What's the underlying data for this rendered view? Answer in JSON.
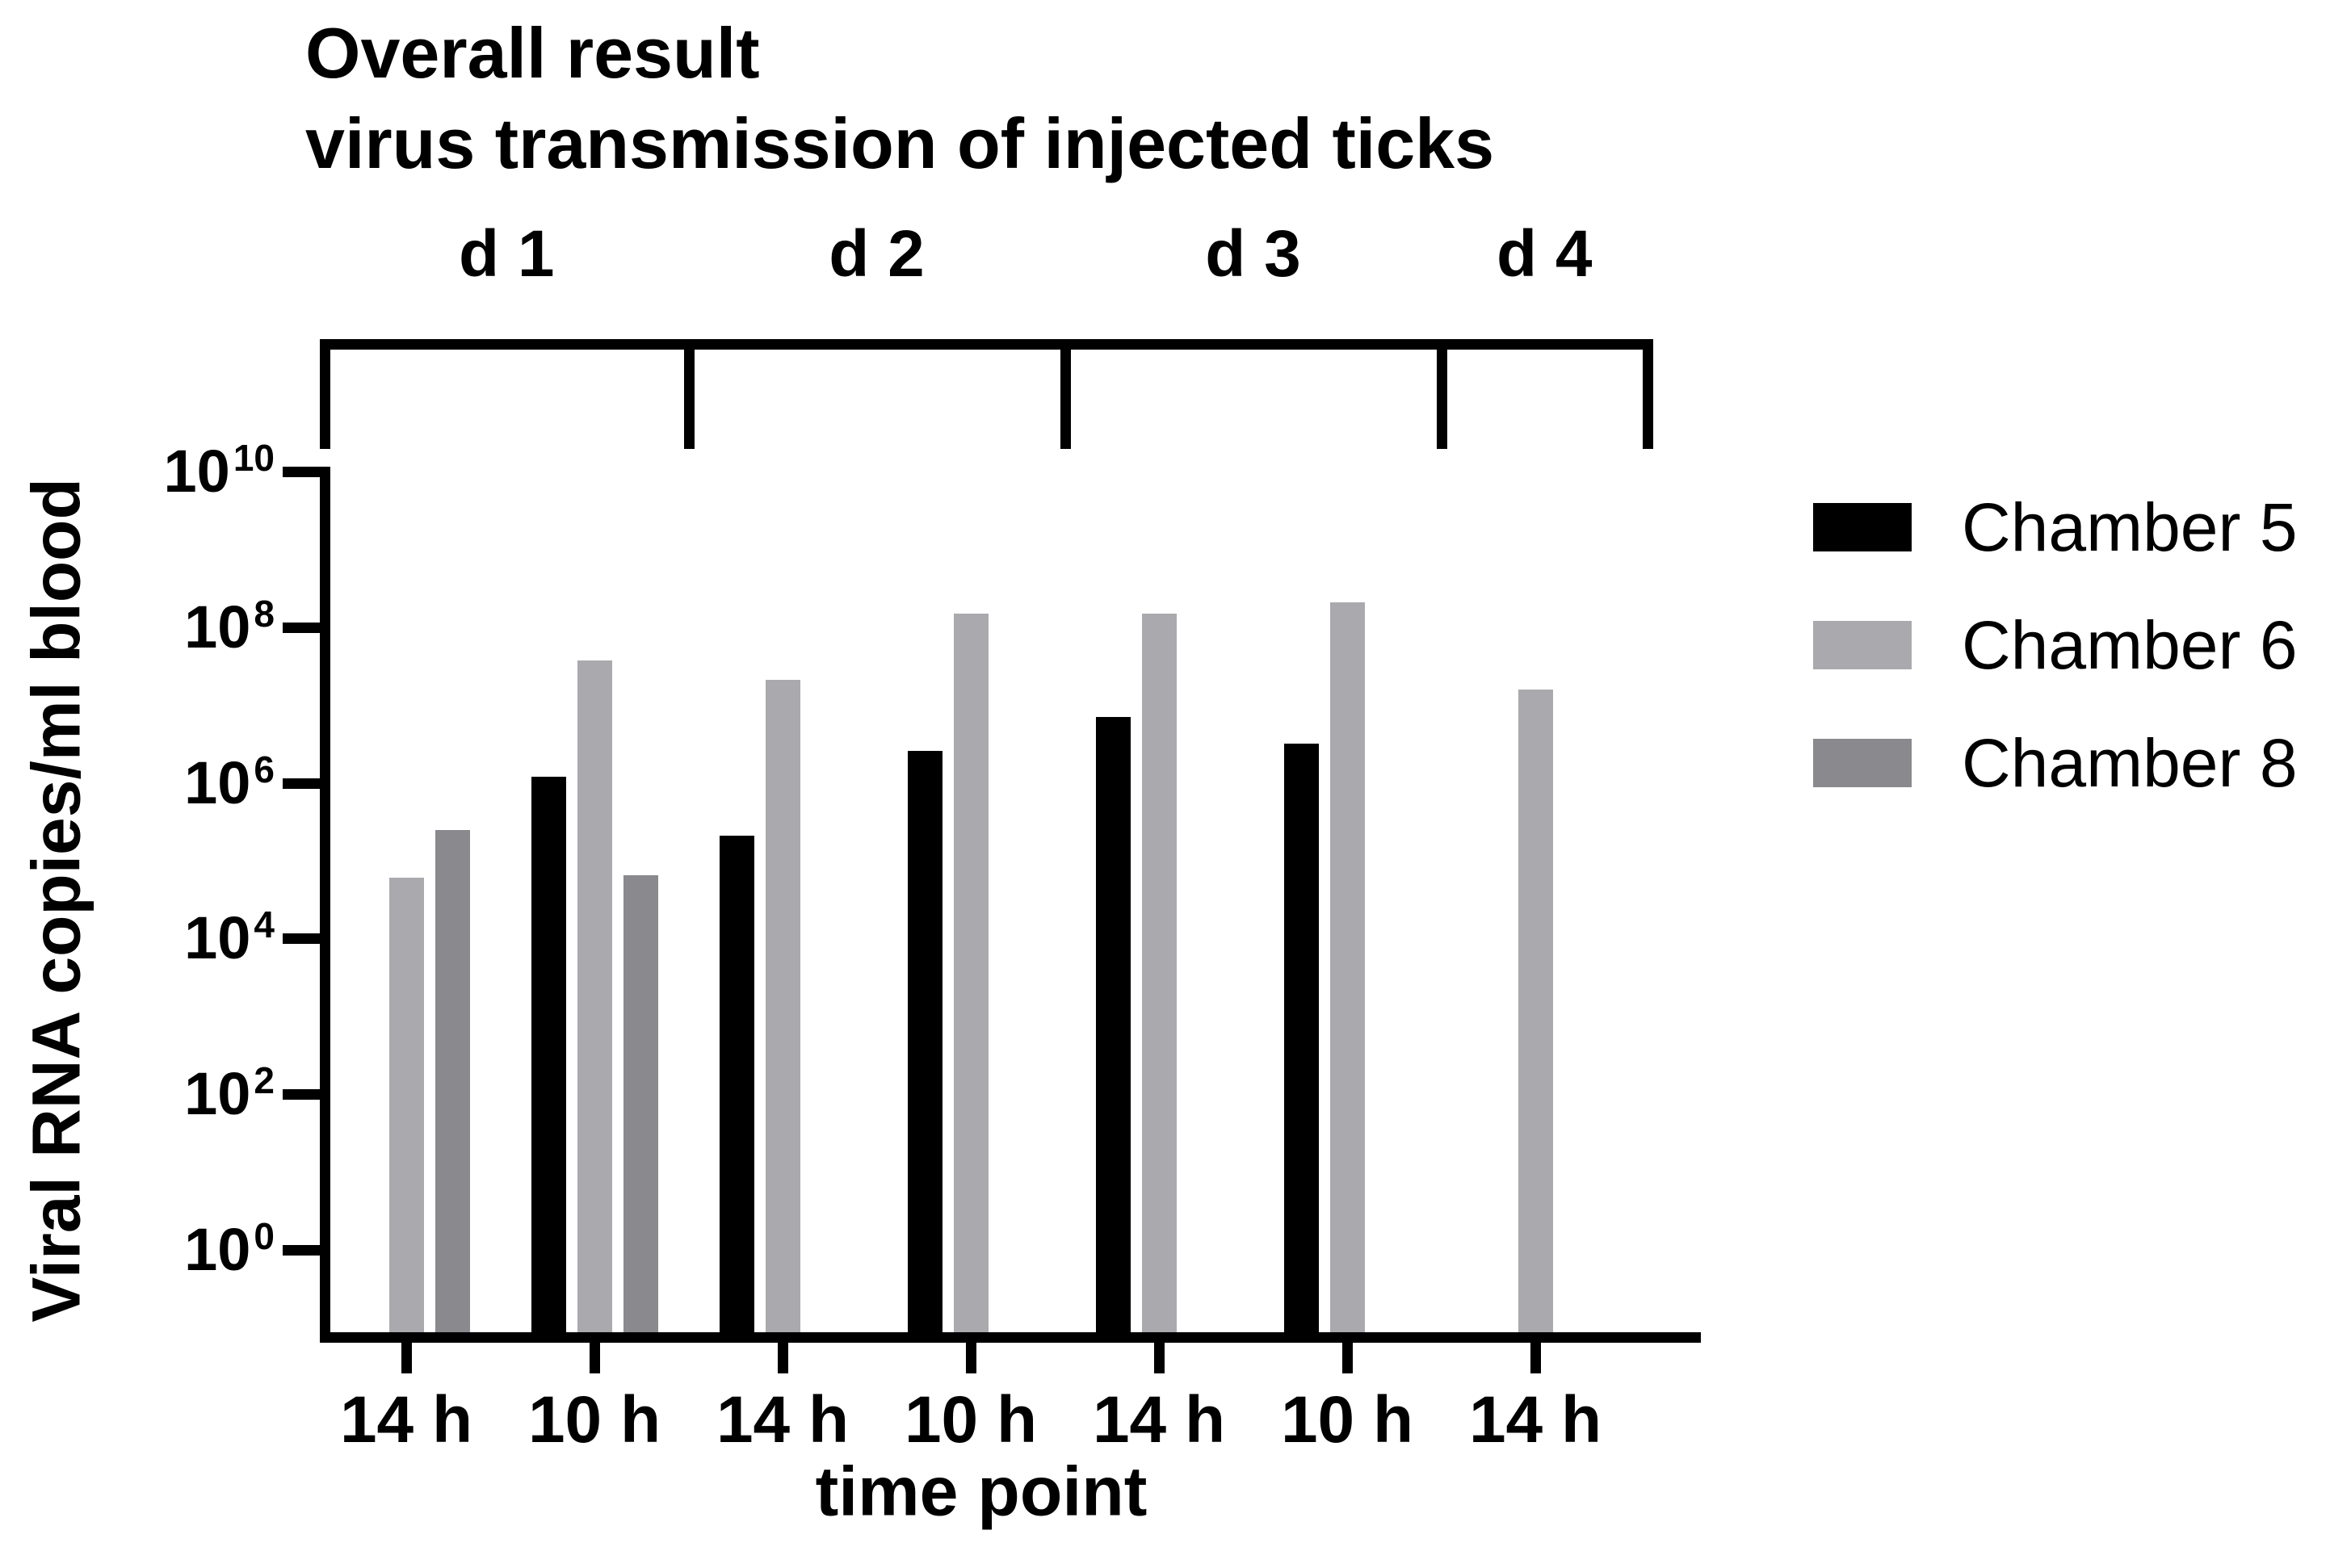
{
  "chart_data": {
    "type": "bar",
    "title": "Overall result",
    "subtitle": "virus transmission of injected ticks",
    "xlabel": "time point",
    "ylabel": "Viral RNA copies/ml blood",
    "y_scale": "log10",
    "grid": false,
    "legend_position": "right",
    "y_tick_base": "10",
    "y_tick_exponents": [
      10,
      8,
      6,
      4,
      2,
      0
    ],
    "ylim_exponents": [
      -1,
      10
    ],
    "categories": [
      "14 h",
      "10 h",
      "14 h",
      "10 h",
      "14 h",
      "10 h",
      "14 h"
    ],
    "day_groups": [
      {
        "label": "d 1",
        "n_timepoints": 2
      },
      {
        "label": "d 2",
        "n_timepoints": 2
      },
      {
        "label": "d 3",
        "n_timepoints": 2
      },
      {
        "label": "d 4",
        "n_timepoints": 1
      }
    ],
    "series": [
      {
        "name": "Chamber 5",
        "color": "#000000",
        "values": [
          null,
          1200000,
          210000,
          2600000,
          7100000,
          3200000,
          null
        ]
      },
      {
        "name": "Chamber 6",
        "color": "#AAA9AD",
        "values": [
          60000,
          37000000,
          21000000,
          150000000,
          150000000,
          210000000,
          16000000
        ]
      },
      {
        "name": "Chamber 8",
        "color": "#8A898D",
        "values": [
          250000,
          65000,
          null,
          null,
          null,
          null,
          null
        ]
      }
    ]
  }
}
